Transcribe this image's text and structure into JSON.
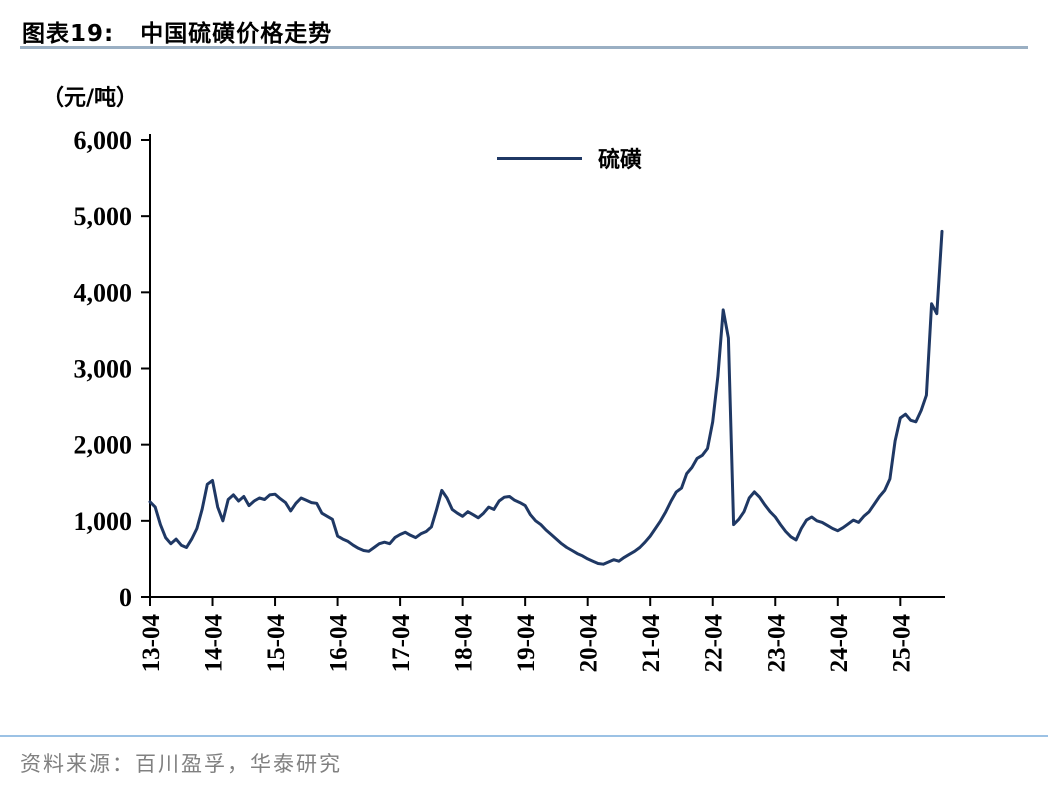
{
  "header": {
    "figure_label": "图表19:",
    "figure_title": "中国硫磺价格走势"
  },
  "footer": {
    "source": "资料来源：百川盈孚，华泰研究"
  },
  "colors": {
    "line": "#1F3864",
    "axis": "#000000",
    "title_rule": "#9AAFC3",
    "footer_rule": "#9CC2E5",
    "source_text": "#808080"
  },
  "chart_data": {
    "type": "line",
    "title": "中国硫磺价格走势",
    "unit_label": "（元/吨）",
    "grid": false,
    "ylim": [
      0,
      6000
    ],
    "ytick_step": 1000,
    "yticks": [
      0,
      1000,
      2000,
      3000,
      4000,
      5000,
      6000
    ],
    "ytick_labels": [
      "0",
      "1,000",
      "2,000",
      "3,000",
      "4,000",
      "5,000",
      "6,000"
    ],
    "x_start": "2013-04",
    "x_frequency": "monthly",
    "xtick_labels": [
      "13-04",
      "14-04",
      "15-04",
      "16-04",
      "17-04",
      "18-04",
      "19-04",
      "20-04",
      "21-04",
      "22-04",
      "23-04",
      "24-04",
      "25-04"
    ],
    "xtick_indices": [
      0,
      12,
      24,
      36,
      48,
      60,
      72,
      84,
      96,
      108,
      120,
      132,
      144
    ],
    "legend": {
      "position": "top-center",
      "entries": [
        {
          "label": "硫磺",
          "color": "#1F3864"
        }
      ]
    },
    "series": [
      {
        "name": "硫磺",
        "unit": "元/吨",
        "color": "#1F3864",
        "values": [
          1250,
          1180,
          950,
          780,
          700,
          760,
          680,
          650,
          760,
          900,
          1150,
          1480,
          1530,
          1180,
          1000,
          1280,
          1340,
          1260,
          1320,
          1200,
          1260,
          1300,
          1280,
          1340,
          1350,
          1290,
          1240,
          1130,
          1230,
          1300,
          1270,
          1240,
          1230,
          1100,
          1060,
          1020,
          800,
          760,
          730,
          680,
          640,
          610,
          600,
          650,
          700,
          720,
          700,
          780,
          820,
          850,
          810,
          780,
          830,
          860,
          920,
          1150,
          1400,
          1300,
          1150,
          1100,
          1060,
          1120,
          1080,
          1040,
          1100,
          1180,
          1150,
          1260,
          1310,
          1320,
          1270,
          1240,
          1200,
          1080,
          1000,
          950,
          880,
          820,
          760,
          700,
          650,
          610,
          570,
          540,
          500,
          470,
          440,
          430,
          460,
          490,
          470,
          520,
          560,
          600,
          650,
          720,
          800,
          900,
          1000,
          1120,
          1260,
          1380,
          1430,
          1620,
          1700,
          1820,
          1860,
          1950,
          2300,
          2900,
          3770,
          3400,
          950,
          1020,
          1120,
          1300,
          1380,
          1310,
          1210,
          1120,
          1050,
          950,
          860,
          790,
          750,
          900,
          1010,
          1050,
          1000,
          980,
          940,
          900,
          870,
          910,
          960,
          1010,
          980,
          1060,
          1120,
          1220,
          1320,
          1400,
          1550,
          2050,
          2350,
          2400,
          2320,
          2300,
          2450,
          2650,
          3850,
          3720,
          4800
        ]
      }
    ]
  }
}
